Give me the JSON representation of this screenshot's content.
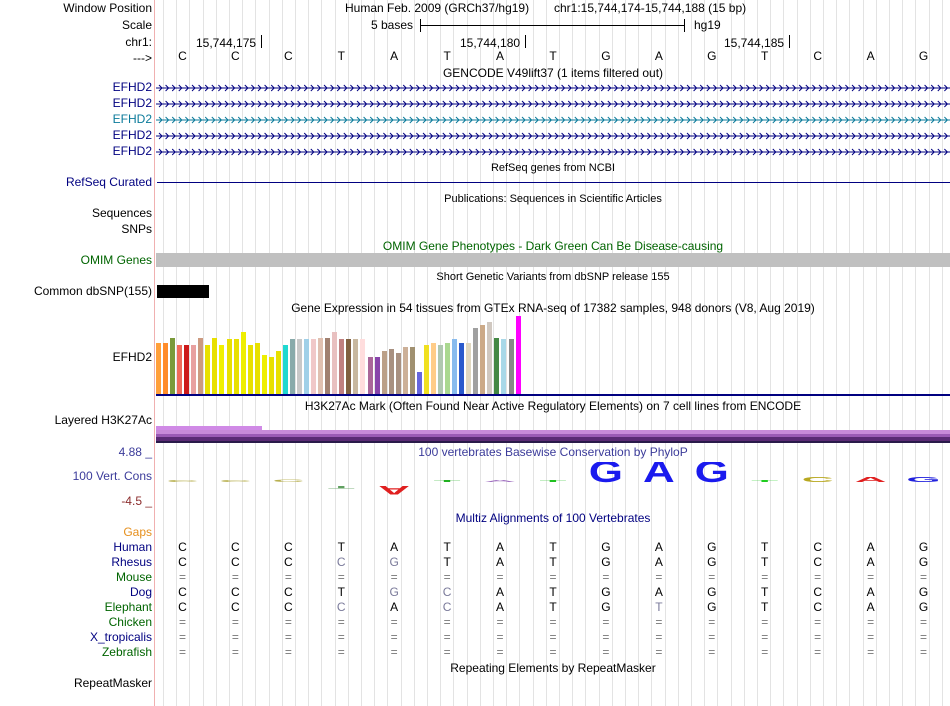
{
  "colors": {
    "navy": "#000080",
    "green": "#006400",
    "teal": "#0a7a9a",
    "gap_orange": "#e6901e",
    "phylop_blue": "#3b3b9a",
    "phylop_neg": "#8b2c2c",
    "omim_gray": "#c0c0c0",
    "h3k_purple": "#6b3a8c"
  },
  "header": {
    "window_position_label": "Window Position",
    "scale_label": "Scale",
    "chr_label": "chr1:",
    "strand_label": "--->",
    "assembly_text": "Human Feb. 2009 (GRCh37/hg19)",
    "position_text": "chr1:15,744,174-15,744,188 (15 bp)",
    "scale_text": "5 bases",
    "genome_text": "hg19",
    "coord_1": "15,744,175",
    "coord_2": "15,744,180",
    "coord_3": "15,744,185"
  },
  "sequence": [
    "C",
    "C",
    "C",
    "T",
    "A",
    "T",
    "A",
    "T",
    "G",
    "A",
    "G",
    "T",
    "C",
    "A",
    "G"
  ],
  "gencode": {
    "title": "GENCODE V49lift37 (1 items filtered out)",
    "transcripts": [
      "EFHD2",
      "EFHD2",
      "EFHD2",
      "EFHD2",
      "EFHD2"
    ]
  },
  "refseq": {
    "title": "RefSeq genes from NCBI",
    "label": "RefSeq Curated"
  },
  "publications": {
    "title": "Publications: Sequences in Scientific Articles",
    "label": "Sequences"
  },
  "snps": {
    "label": "SNPs"
  },
  "omim": {
    "title": "OMIM Gene Phenotypes - Dark Green Can Be Disease-causing",
    "label": "OMIM Genes"
  },
  "dbsnp": {
    "title": "Short Genetic Variants from dbSNP release 155",
    "label": "Common dbSNP(155)"
  },
  "gtex": {
    "title": "Gene Expression in 54 tissues from GTEx RNA-seq of 17382 samples, 948 donors (V8, Aug 2019)",
    "label": "EFHD2",
    "bars": [
      {
        "c": "#ff9f3a",
        "v": 0.66
      },
      {
        "c": "#ff8c2a",
        "v": 0.66
      },
      {
        "c": "#7a9a3a",
        "v": 0.72
      },
      {
        "c": "#ef6a5a",
        "v": 0.63
      },
      {
        "c": "#cc1a1a",
        "v": 0.63
      },
      {
        "c": "#e8a0a0",
        "v": 0.63
      },
      {
        "c": "#cc9a80",
        "v": 0.72
      },
      {
        "c": "#e8e000",
        "v": 0.63
      },
      {
        "c": "#e8e000",
        "v": 0.72
      },
      {
        "c": "#f0f000",
        "v": 0.63
      },
      {
        "c": "#e8e000",
        "v": 0.7
      },
      {
        "c": "#e8e000",
        "v": 0.7
      },
      {
        "c": "#eeee00",
        "v": 0.79
      },
      {
        "c": "#e8e000",
        "v": 0.63
      },
      {
        "c": "#e8e000",
        "v": 0.65
      },
      {
        "c": "#eeee00",
        "v": 0.5
      },
      {
        "c": "#e8e000",
        "v": 0.48
      },
      {
        "c": "#e8e000",
        "v": 0.55
      },
      {
        "c": "#20d8d0",
        "v": 0.63
      },
      {
        "c": "#88aaaa",
        "v": 0.7
      },
      {
        "c": "#c8c8c8",
        "v": 0.7
      },
      {
        "c": "#a0d0e8",
        "v": 0.7
      },
      {
        "c": "#f0c8c8",
        "v": 0.7
      },
      {
        "c": "#e0c0b0",
        "v": 0.72
      },
      {
        "c": "#a08070",
        "v": 0.72
      },
      {
        "c": "#e8c0c0",
        "v": 0.79
      },
      {
        "c": "#c08080",
        "v": 0.7
      },
      {
        "c": "#806040",
        "v": 0.7
      },
      {
        "c": "#c8b8a0",
        "v": 0.7
      },
      {
        "c": "#ffdddd",
        "v": 0.7
      },
      {
        "c": "#aa6699",
        "v": 0.47
      },
      {
        "c": "#8844aa",
        "v": 0.47
      },
      {
        "c": "#bba088",
        "v": 0.55
      },
      {
        "c": "#a89080",
        "v": 0.58
      },
      {
        "c": "#a89080",
        "v": 0.52
      },
      {
        "c": "#ccb098",
        "v": 0.6
      },
      {
        "c": "#a09070",
        "v": 0.6
      },
      {
        "c": "#6666dd",
        "v": 0.28
      },
      {
        "c": "#f0e020",
        "v": 0.63
      },
      {
        "c": "#ffcc88",
        "v": 0.66
      },
      {
        "c": "#b0c8b0",
        "v": 0.63
      },
      {
        "c": "#aad890",
        "v": 0.66
      },
      {
        "c": "#88bbee",
        "v": 0.7
      },
      {
        "c": "#2a5acc",
        "v": 0.66
      },
      {
        "c": "#e0d8c0",
        "v": 0.66
      },
      {
        "c": "#a0a0a0",
        "v": 0.84
      },
      {
        "c": "#ccaa88",
        "v": 0.88
      },
      {
        "c": "#d0c8c0",
        "v": 0.92
      },
      {
        "c": "#448844",
        "v": 0.72
      },
      {
        "c": "#a8d8e8",
        "v": 0.7
      },
      {
        "c": "#888888",
        "v": 0.7
      },
      {
        "c": "#ff00ff",
        "v": 1.0
      }
    ]
  },
  "h3k27ac": {
    "title": "H3K27Ac Mark (Often Found Near Active Regulatory Elements) on 7 cell lines from ENCODE",
    "label": "Layered H3K27Ac"
  },
  "phylop": {
    "title": "100 vertebrates Basewise Conservation by PhyloP",
    "label": "100 Vert. Cons",
    "max_label": "4.88 _",
    "min_label": "-4.5 _",
    "logo": [
      {
        "b": "C",
        "s": 0.05,
        "c": "#b8b050",
        "up": true
      },
      {
        "b": "C",
        "s": 0.05,
        "c": "#b8b050",
        "up": true
      },
      {
        "b": "C",
        "s": 0.1,
        "c": "#b8b050",
        "up": true
      },
      {
        "b": "T",
        "s": 0.1,
        "c": "#60a060",
        "up": false
      },
      {
        "b": "A",
        "s": 0.35,
        "c": "#e02020",
        "up": false
      },
      {
        "b": "T",
        "s": 0.02,
        "c": "#20b020",
        "up": true
      },
      {
        "b": "A",
        "s": 0.02,
        "c": "#a070c0",
        "up": true
      },
      {
        "b": "T",
        "s": 0.08,
        "c": "#20c020",
        "up": true
      },
      {
        "b": "G",
        "s": 0.9,
        "c": "#1a1aee",
        "up": true
      },
      {
        "b": "A",
        "s": 0.9,
        "c": "#1a1aee",
        "up": true
      },
      {
        "b": "G",
        "s": 0.9,
        "c": "#1a1aee",
        "up": true
      },
      {
        "b": "T",
        "s": 0.06,
        "c": "#20cc20",
        "up": true
      },
      {
        "b": "C",
        "s": 0.2,
        "c": "#b8a820",
        "up": true
      },
      {
        "b": "A",
        "s": 0.2,
        "c": "#e02020",
        "up": true
      },
      {
        "b": "G",
        "s": 0.2,
        "c": "#2020dd",
        "up": true
      }
    ]
  },
  "multiz": {
    "title": "Multiz Alignments of 100 Vertebrates",
    "gaps_label": "Gaps",
    "species": [
      {
        "name": "Human",
        "color": "#000080",
        "bases": [
          "C",
          "C",
          "C",
          "T",
          "A",
          "T",
          "A",
          "T",
          "G",
          "A",
          "G",
          "T",
          "C",
          "A",
          "G"
        ]
      },
      {
        "name": "Rhesus",
        "color": "#000080",
        "bases": [
          "C",
          "C",
          "C",
          "C",
          "G",
          "T",
          "A",
          "T",
          "G",
          "A",
          "G",
          "T",
          "C",
          "A",
          "G"
        ],
        "dim": [
          3,
          4
        ]
      },
      {
        "name": "Mouse",
        "color": "#006400",
        "bases": [
          "=",
          "=",
          "=",
          "=",
          "=",
          "=",
          "=",
          "=",
          "=",
          "=",
          "=",
          "=",
          "=",
          "=",
          "="
        ]
      },
      {
        "name": "Dog",
        "color": "#000080",
        "bases": [
          "C",
          "C",
          "C",
          "T",
          "G",
          "C",
          "A",
          "T",
          "G",
          "A",
          "G",
          "T",
          "C",
          "A",
          "G"
        ],
        "dim": [
          4,
          5
        ]
      },
      {
        "name": "Elephant",
        "color": "#006400",
        "bases": [
          "C",
          "C",
          "C",
          "C",
          "A",
          "C",
          "A",
          "T",
          "G",
          "T",
          "G",
          "T",
          "C",
          "A",
          "G"
        ],
        "dim": [
          3,
          5,
          9
        ]
      },
      {
        "name": "Chicken",
        "color": "#006400",
        "bases": [
          "=",
          "=",
          "=",
          "=",
          "=",
          "=",
          "=",
          "=",
          "=",
          "=",
          "=",
          "=",
          "=",
          "=",
          "="
        ]
      },
      {
        "name": "X_tropicalis",
        "color": "#000080",
        "bases": [
          "=",
          "=",
          "=",
          "=",
          "=",
          "=",
          "=",
          "=",
          "=",
          "=",
          "=",
          "=",
          "=",
          "=",
          "="
        ]
      },
      {
        "name": "Zebrafish",
        "color": "#006400",
        "bases": [
          "=",
          "=",
          "=",
          "=",
          "=",
          "=",
          "=",
          "=",
          "=",
          "=",
          "=",
          "=",
          "=",
          "=",
          "="
        ]
      }
    ]
  },
  "repeatmasker": {
    "title": "Repeating Elements by RepeatMasker",
    "label": "RepeatMasker"
  }
}
